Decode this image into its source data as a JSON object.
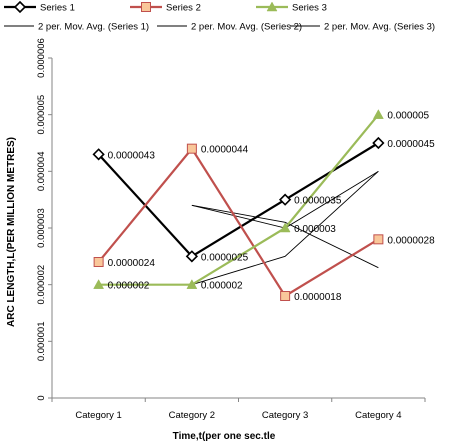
{
  "chart_data": {
    "type": "line",
    "title": "",
    "xlabel": "Time,t(per one sec.tle",
    "ylabel": "ARC LENGTH,L(PER MILLION METRES)",
    "categories": [
      "Category 1",
      "Category 2",
      "Category 3",
      "Category 4"
    ],
    "ylim": [
      0,
      6e-06
    ],
    "ytick_labels": [
      "0",
      "0.000001",
      "0.000002",
      "0.000003",
      "0.000004",
      "0.000005",
      "0.000006"
    ],
    "grid": false,
    "legend_position": "top",
    "series": [
      {
        "name": "Series 1",
        "color": "#000000",
        "marker": "diamond",
        "values": [
          4.3e-06,
          2.5e-06,
          3.5e-06,
          4.5e-06
        ],
        "labels": [
          "0.0000043",
          "0.0000025",
          "0.0000035",
          "0.0000045"
        ]
      },
      {
        "name": "Series 2",
        "color": "#c0504d",
        "marker": "square",
        "values": [
          2.4e-06,
          4.4e-06,
          1.8e-06,
          2.8e-06
        ],
        "labels": [
          "0.0000024",
          "0.0000044",
          "0.0000018",
          "0.0000028"
        ]
      },
      {
        "name": "Series 3",
        "color": "#9bbb59",
        "marker": "triangle",
        "values": [
          2e-06,
          2e-06,
          3e-06,
          5e-06
        ],
        "labels": [
          "0.000002",
          "0.000002",
          "0.000003",
          "0.000005"
        ]
      }
    ],
    "trendlines": [
      {
        "name": "2 per. Mov. Avg. (Series 1)",
        "color": "#000000",
        "values": [
          null,
          3.4e-06,
          3e-06,
          4e-06
        ]
      },
      {
        "name": "2 per. Mov. Avg. (Series 2)",
        "color": "#000000",
        "values": [
          null,
          3.4e-06,
          3.1e-06,
          2.3e-06
        ]
      },
      {
        "name": "2 per. Mov. Avg. (Series 3)",
        "color": "#000000",
        "values": [
          null,
          2e-06,
          2.5e-06,
          4e-06
        ]
      }
    ]
  }
}
